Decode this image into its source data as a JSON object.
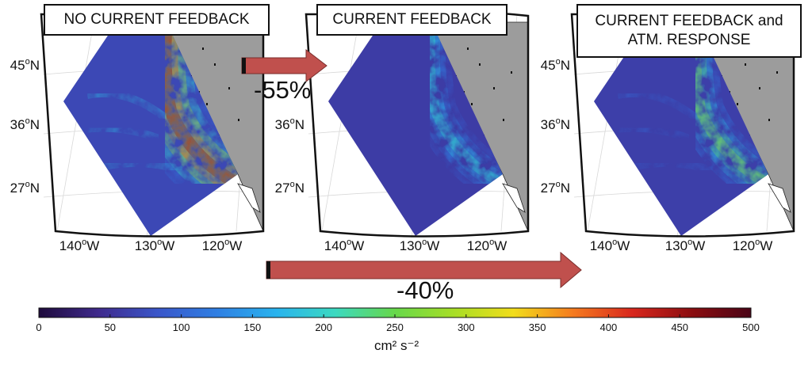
{
  "panels": [
    {
      "title_lines": [
        "NO CURRENT FEEDBACK"
      ],
      "intensity": 1.0
    },
    {
      "title_lines": [
        "CURRENT FEEDBACK"
      ],
      "intensity": 0.45
    },
    {
      "title_lines": [
        "CURRENT FEEDBACK and",
        "ATM. RESPONSE"
      ],
      "intensity": 0.6
    }
  ],
  "map_labels": {
    "lat_45": "45",
    "lat_36": "36",
    "lat_27": "27",
    "lat_suffix": "N",
    "lon_140": "140",
    "lon_130": "130",
    "lon_120": "120",
    "lon_suffix": "W",
    "degree": "o"
  },
  "arrows": {
    "top": {
      "label": "-55%",
      "color": "#c0504d"
    },
    "bottom": {
      "label": "-40%",
      "color": "#c0504d"
    }
  },
  "colorbar": {
    "ticks": [
      "0",
      "50",
      "100",
      "150",
      "200",
      "250",
      "300",
      "350",
      "400",
      "450",
      "500"
    ],
    "unit": "cm² s⁻²",
    "colormap": [
      "#1e0a3c",
      "#3f2a8c",
      "#3a56c9",
      "#2f7fe3",
      "#29b3ee",
      "#3cd9c0",
      "#67d84a",
      "#a8de26",
      "#f2dd1b",
      "#f57b1f",
      "#d8271d",
      "#8b0d10",
      "#4a0416"
    ]
  },
  "land_color": "#9c9c9c"
}
